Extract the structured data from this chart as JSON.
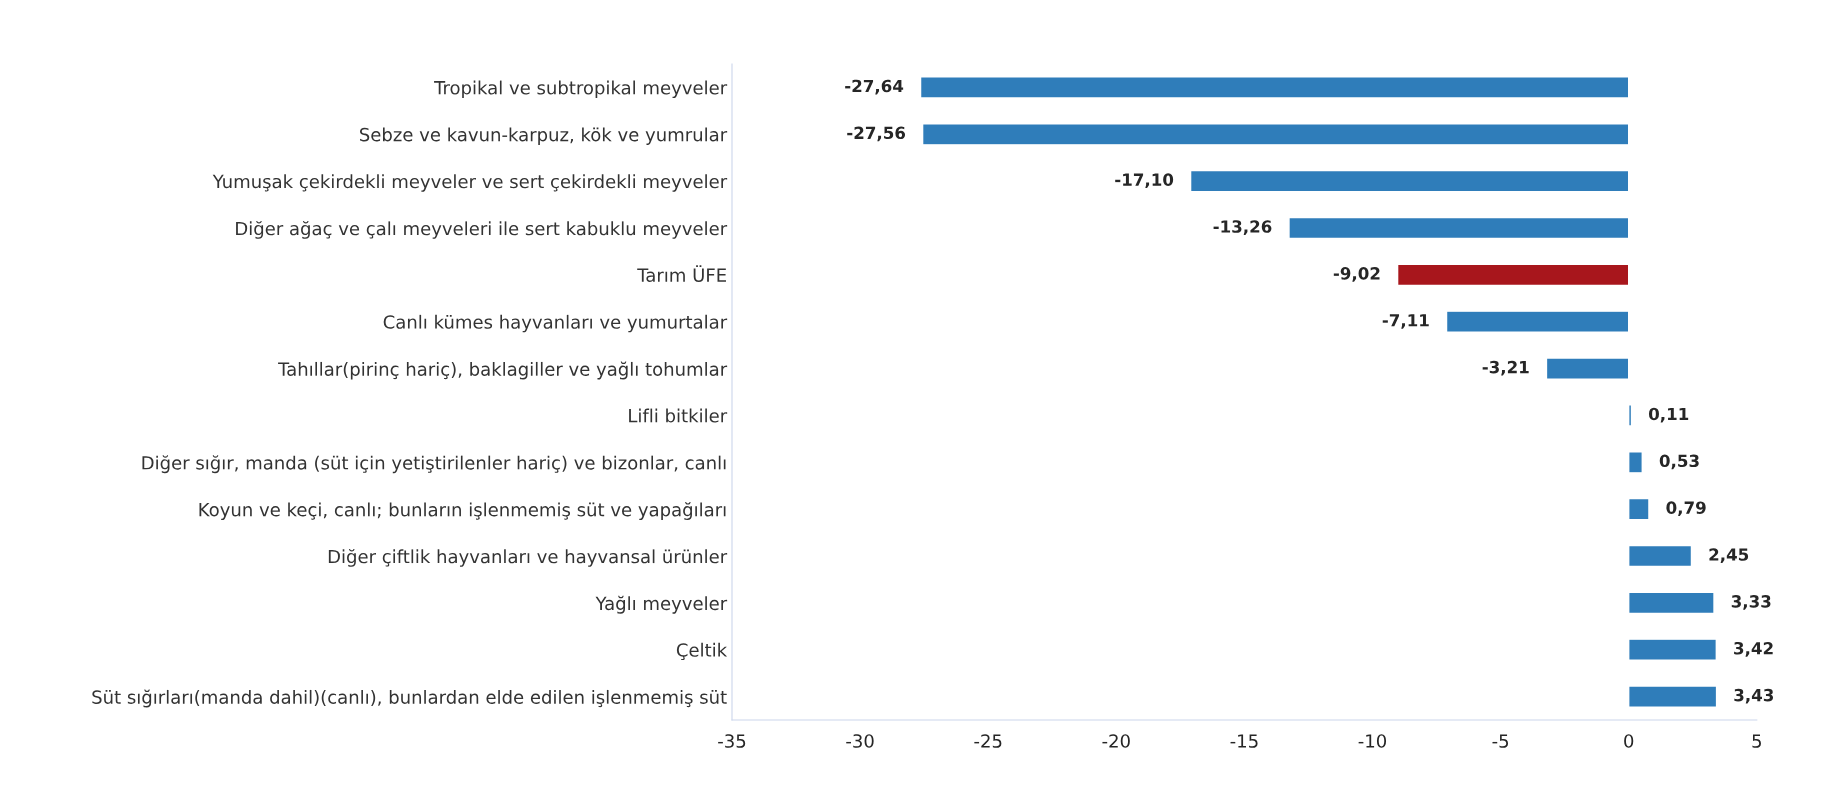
{
  "chart_data": {
    "type": "bar",
    "orientation": "horizontal",
    "categories": [
      "Tropikal ve subtropikal meyveler",
      "Sebze ve kavun-karpuz, kök ve yumrular",
      "Yumuşak çekirdekli meyveler ve sert çekirdekli meyveler",
      "Diğer ağaç ve çalı meyveleri ile sert kabuklu meyveler",
      "Tarım ÜFE",
      "Canlı kümes hayvanları ve yumurtalar",
      "Tahıllar(pirinç hariç), baklagiller ve yağlı tohumlar",
      "Lifli bitkiler",
      "Diğer sığır, manda (süt için yetiştirilenler hariç) ve bizonlar, canlı",
      "Koyun ve keçi, canlı; bunların işlenmemiş süt ve yapağıları",
      "Diğer çiftlik hayvanları ve hayvansal ürünler",
      "Yağlı meyveler",
      "Çeltik",
      "Süt sığırları(manda dahil)(canlı), bunlardan elde edilen işlenmemiş süt"
    ],
    "values": [
      -27.64,
      -27.56,
      -17.1,
      -13.26,
      -9.02,
      -7.11,
      -3.21,
      0.11,
      0.53,
      0.79,
      2.45,
      3.33,
      3.42,
      3.43
    ],
    "value_labels": [
      "-27,64",
      "-27,56",
      "-17,10",
      "-13,26",
      "-9,02",
      "-7,11",
      "-3,21",
      "0,11",
      "0,53",
      "0,79",
      "2,45",
      "3,33",
      "3,42",
      "3,43"
    ],
    "colors": [
      "#2f7dba",
      "#2f7dba",
      "#2f7dba",
      "#2f7dba",
      "#a8161c",
      "#2f7dba",
      "#2f7dba",
      "#2f7dba",
      "#2f7dba",
      "#2f7dba",
      "#2f7dba",
      "#2f7dba",
      "#2f7dba",
      "#2f7dba"
    ],
    "xlim": [
      -35,
      5
    ],
    "xticks": [
      -35,
      -30,
      -25,
      -20,
      -15,
      -10,
      -5,
      0,
      5
    ],
    "grid": false,
    "legend": false
  }
}
